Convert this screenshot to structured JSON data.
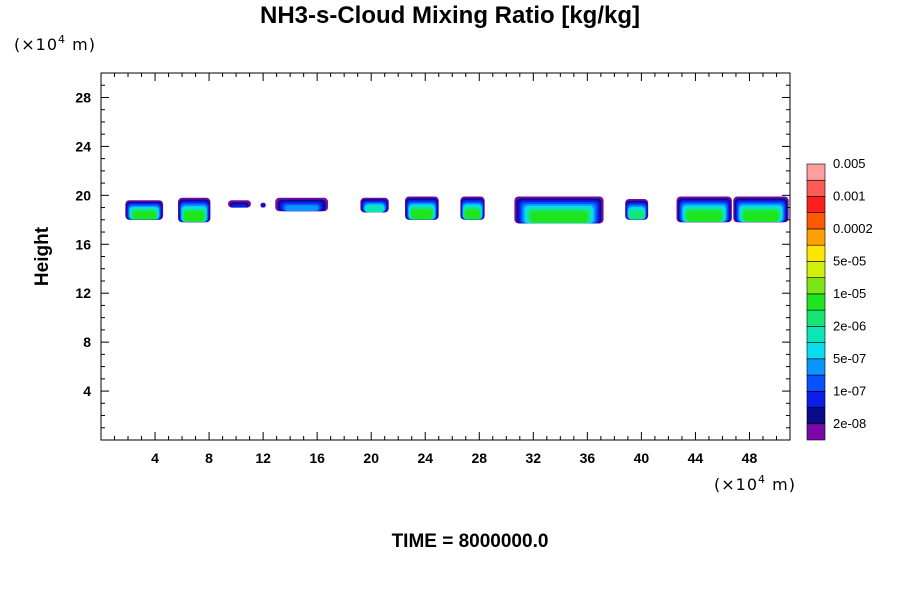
{
  "chart_data": {
    "type": "heatmap",
    "title": "NH3-s-Cloud Mixing Ratio [kg/kg]",
    "ylabel": "Height",
    "xlim": [
      0,
      51
    ],
    "ylim": [
      0,
      30
    ],
    "x_ticks": [
      4,
      8,
      12,
      16,
      20,
      24,
      28,
      32,
      36,
      40,
      44,
      48
    ],
    "y_ticks": [
      4,
      8,
      12,
      16,
      20,
      24,
      28
    ],
    "x_unit": {
      "prefix": "(×10",
      "exp": "4",
      "suffix": " m)"
    },
    "y_unit": {
      "prefix": "(×10",
      "exp": "4",
      "suffix": " m)"
    },
    "time_label": "TIME = 8000000.0",
    "colorbar": {
      "colors": [
        "#7a0aa8",
        "#0a0a8c",
        "#0a1ee6",
        "#0a50ff",
        "#0a96ff",
        "#0adcf0",
        "#0ae6b4",
        "#14e678",
        "#1ee61e",
        "#78e614",
        "#d2f00a",
        "#ffe600",
        "#ffa000",
        "#ff5a00",
        "#ff1e1e",
        "#ff5a5a",
        "#ff9e9e"
      ],
      "labels": [
        "2e-08",
        "1e-07",
        "5e-07",
        "2e-06",
        "1e-05",
        "5e-05",
        "0.0002",
        "0.001",
        "0.005"
      ]
    },
    "cloud_patches": [
      {
        "x0": 1.8,
        "x1": 4.6,
        "ytop": 19.6,
        "ybot": 18.0,
        "max_level": 8
      },
      {
        "x0": 5.7,
        "x1": 8.1,
        "ytop": 19.8,
        "ybot": 17.8,
        "max_level": 8
      },
      {
        "x0": 9.4,
        "x1": 11.1,
        "ytop": 19.6,
        "ybot": 19.0,
        "max_level": 2
      },
      {
        "x0": 11.8,
        "x1": 12.2,
        "ytop": 19.4,
        "ybot": 19.0,
        "max_level": 2
      },
      {
        "x0": 12.9,
        "x1": 16.8,
        "ytop": 19.8,
        "ybot": 18.7,
        "max_level": 4
      },
      {
        "x0": 19.2,
        "x1": 21.3,
        "ytop": 19.8,
        "ybot": 18.6,
        "max_level": 6
      },
      {
        "x0": 22.5,
        "x1": 25.0,
        "ytop": 19.9,
        "ybot": 18.0,
        "max_level": 8
      },
      {
        "x0": 26.6,
        "x1": 28.4,
        "ytop": 19.9,
        "ybot": 18.0,
        "max_level": 8
      },
      {
        "x0": 30.6,
        "x1": 37.2,
        "ytop": 19.9,
        "ybot": 17.7,
        "max_level": 8
      },
      {
        "x0": 38.8,
        "x1": 40.5,
        "ytop": 19.7,
        "ybot": 18.0,
        "max_level": 7
      },
      {
        "x0": 42.6,
        "x1": 46.7,
        "ytop": 19.9,
        "ybot": 17.8,
        "max_level": 8
      },
      {
        "x0": 46.8,
        "x1": 50.9,
        "ytop": 19.9,
        "ybot": 17.8,
        "max_level": 8
      }
    ]
  }
}
